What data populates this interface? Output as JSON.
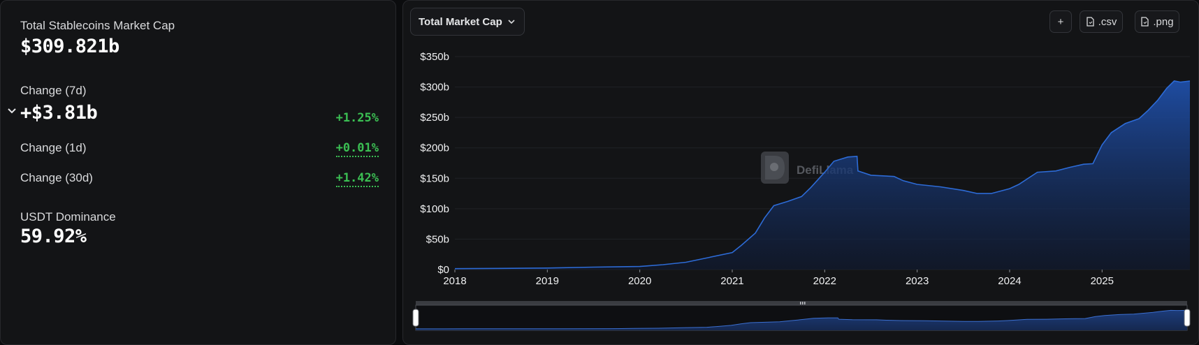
{
  "stats": {
    "total_label": "Total Stablecoins Market Cap",
    "total_value": "$309.821b",
    "change7d_label": "Change (7d)",
    "change7d_value": "+$3.81b",
    "change7d_pct": "+1.25%",
    "change1d_label": "Change (1d)",
    "change1d_pct": "+0.01%",
    "change30d_label": "Change (30d)",
    "change30d_pct": "+1.42%",
    "dominance_label": "USDT Dominance",
    "dominance_value": "59.92%"
  },
  "toolbar": {
    "dropdown_label": "Total Market Cap",
    "add_label": "+",
    "csv_label": ".csv",
    "png_label": ".png"
  },
  "watermark": "DefiLlama",
  "colors": {
    "line": "#2d6bd6",
    "positive": "#3bbf53",
    "background": "#131416"
  },
  "chart_data": {
    "type": "area",
    "ylim": [
      0,
      350
    ],
    "yticks": [
      "$0",
      "$50b",
      "$100b",
      "$150b",
      "$200b",
      "$250b",
      "$300b",
      "$350b"
    ],
    "ytick_values": [
      0,
      50,
      100,
      150,
      200,
      250,
      300,
      350
    ],
    "xticks": [
      "2018",
      "2019",
      "2020",
      "2021",
      "2022",
      "2023",
      "2024",
      "2025"
    ],
    "xtick_values": [
      2018,
      2019,
      2020,
      2021,
      2022,
      2023,
      2024,
      2025
    ],
    "xlim": [
      2018,
      2025.95
    ],
    "series": [
      {
        "x": [
          2018,
          2018.5,
          2019,
          2019.5,
          2020,
          2020.25,
          2020.5,
          2020.75,
          2021,
          2021.1,
          2021.25,
          2021.35,
          2021.45,
          2021.6,
          2021.75,
          2021.85,
          2022,
          2022.1,
          2022.25,
          2022.35,
          2022.36,
          2022.5,
          2022.75,
          2022.85,
          2023,
          2023.25,
          2023.5,
          2023.65,
          2023.8,
          2024,
          2024.1,
          2024.3,
          2024.5,
          2024.65,
          2024.8,
          2024.9,
          2025,
          2025.1,
          2025.25,
          2025.4,
          2025.5,
          2025.6,
          2025.7,
          2025.78,
          2025.85,
          2025.95
        ],
        "y": [
          1.5,
          2,
          2.5,
          4,
          5,
          8,
          12,
          20,
          28,
          40,
          60,
          85,
          105,
          112,
          120,
          135,
          160,
          178,
          185,
          186,
          162,
          155,
          153,
          146,
          140,
          136,
          130,
          125,
          125,
          133,
          140,
          160,
          162,
          168,
          173,
          174,
          205,
          225,
          240,
          248,
          262,
          278,
          298,
          310,
          308,
          309.8
        ]
      }
    ]
  }
}
